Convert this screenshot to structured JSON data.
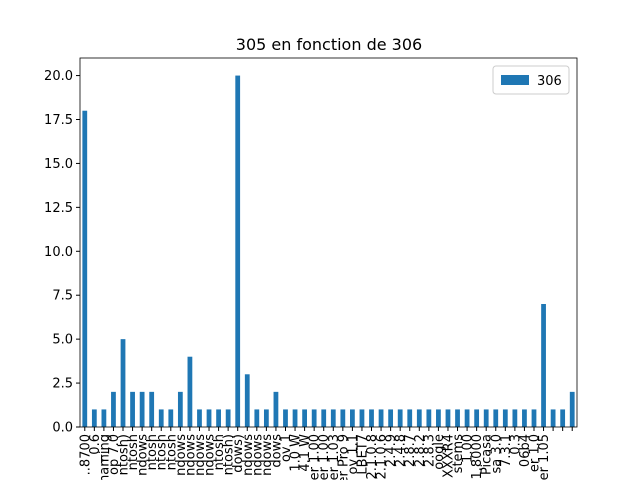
{
  "chart_data": {
    "type": "bar",
    "title": "305 en fonction de 306",
    "categories": [
      "..8700",
      "_0.6",
      "naming",
      "op 7.0",
      "ntosh)",
      "ntosh",
      "ndows",
      "ntosh",
      "ntosh",
      "ntosh",
      "ndows",
      "ndows",
      "ndows",
      "ndows",
      "ntosh",
      "ntosh)",
      "dows)",
      "ndows",
      "ndows",
      "ndows",
      "dows",
      "ov 1",
      "1.0 W",
      "4.1 W",
      "er 1.00",
      "er 1.00",
      "er 1.03",
      "er Pro 9",
      "ov 1.1",
      "LBET7",
      "2.1.0.8",
      "2.1.0.6",
      "2.4.9",
      "2.4.8",
      "2.8.7",
      "2.8.2",
      "2.8.3",
      "oogle",
      "XXXR4",
      "stems",
      "1.00",
      "1.8000",
      "Picasa",
      "sa 3.0",
      "7.3.1",
      "0.3",
      "06b4",
      "er 1.0",
      "er 1.05",
      null,
      null,
      null
    ],
    "series": [
      {
        "name": "306",
        "color": "#1f77b4",
        "values": [
          18,
          1,
          1,
          2,
          5,
          2,
          2,
          2,
          1,
          1,
          2,
          4,
          1,
          1,
          1,
          1,
          20,
          3,
          1,
          1,
          2,
          1,
          1,
          1,
          1,
          1,
          1,
          1,
          1,
          1,
          1,
          1,
          1,
          1,
          1,
          1,
          1,
          1,
          1,
          1,
          1,
          1,
          1,
          1,
          1,
          1,
          1,
          1,
          7,
          1,
          1,
          2
        ]
      }
    ],
    "ylim": [
      0,
      21
    ],
    "yticks": [
      {
        "value": 0,
        "label": "0.0"
      },
      {
        "value": 2.5,
        "label": "2.5"
      },
      {
        "value": 5,
        "label": "5.0"
      },
      {
        "value": 7.5,
        "label": "7.5"
      },
      {
        "value": 10,
        "label": "10.0"
      },
      {
        "value": 12.5,
        "label": "12.5"
      },
      {
        "value": 15,
        "label": "15.0"
      },
      {
        "value": 17.5,
        "label": "17.5"
      },
      {
        "value": 20,
        "label": "20.0"
      }
    ],
    "legend": "upper right"
  }
}
